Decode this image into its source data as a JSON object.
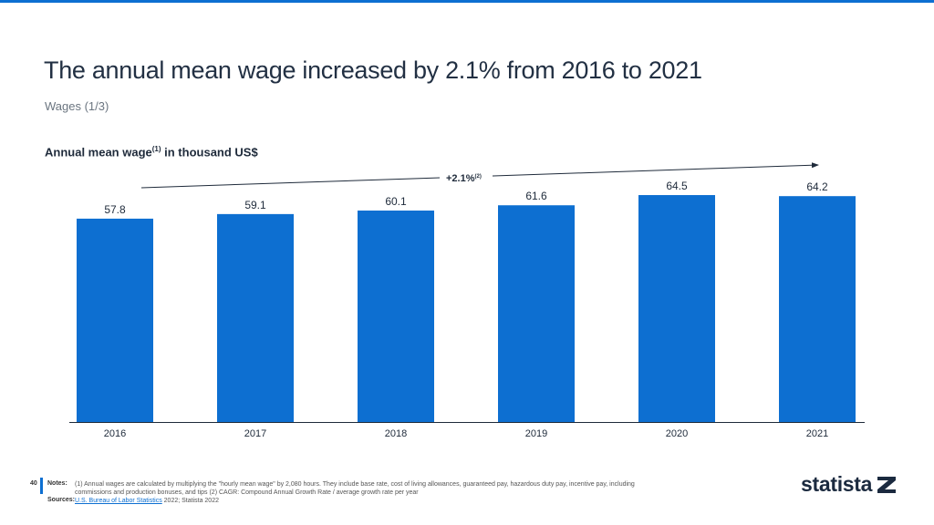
{
  "header": {
    "title": "The annual mean wage increased by 2.1% from 2016 to 2021",
    "subtitle": "Wages (1/3)"
  },
  "chart_data": {
    "type": "bar",
    "title": "Annual mean wage",
    "title_sup": "(1)",
    "title_suffix": " in thousand US$",
    "categories": [
      "2016",
      "2017",
      "2018",
      "2019",
      "2020",
      "2021"
    ],
    "values": [
      57.8,
      59.1,
      60.1,
      61.6,
      64.5,
      64.2
    ],
    "value_labels": [
      "57.8",
      "59.1",
      "60.1",
      "61.6",
      "64.5",
      "64.2"
    ],
    "ylim": [
      0,
      70
    ],
    "grid": false,
    "bar_color": "#0d6fd1",
    "annotation": {
      "label": "+2.1%",
      "sup": "(2)",
      "type": "CAGR arrow"
    }
  },
  "footer": {
    "page_number": "40",
    "notes_label": "Notes:",
    "notes_text": "(1) Annual wages are calculated by multiplying the \"hourly mean wage\" by 2,080 hours. They include base rate, cost of living allowances, guaranteed pay, hazardous duty pay, incentive pay, including commissions and production bonuses, and tips (2) CAGR: Compound Annual Growth Rate / average growth rate per year",
    "sources_label": "Sources:",
    "source_link": "U.S. Bureau of Labor Statistics",
    "source_rest": " 2022; Statista 2022"
  },
  "logo": {
    "text": "statista"
  }
}
